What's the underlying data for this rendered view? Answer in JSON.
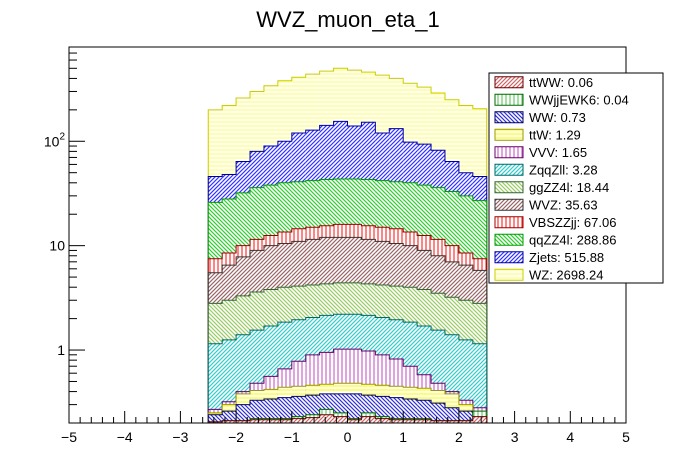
{
  "chart_data": {
    "type": "bar",
    "stacked": true,
    "title": "WVZ_muon_eta_1",
    "xlabel": "",
    "ylabel": "",
    "xlim": [
      -5,
      5
    ],
    "ylim": [
      0.2,
      800
    ],
    "yscale": "log",
    "x_ticks": [
      "−5",
      "−4",
      "−3",
      "−2",
      "−1",
      "0",
      "1",
      "2",
      "3",
      "4",
      "5"
    ],
    "y_ticks": [
      {
        "value": 1,
        "label": "1",
        "exp": ""
      },
      {
        "value": 10,
        "label": "10",
        "exp": ""
      },
      {
        "value": 100,
        "label": "10",
        "exp": "2"
      }
    ],
    "bin_edges": [
      -2.5,
      -2.25,
      -2.0,
      -1.75,
      -1.5,
      -1.25,
      -1.0,
      -0.75,
      -0.5,
      -0.25,
      0.0,
      0.25,
      0.5,
      0.75,
      1.0,
      1.25,
      1.5,
      1.75,
      2.0,
      2.25,
      2.5
    ],
    "legend_position": "top-right",
    "series": [
      {
        "name": "WZ",
        "legend": "WZ: 2698.24",
        "color": "#ffff66",
        "stroke": "#cccc00",
        "cumulative": [
          200,
          220,
          260,
          300,
          340,
          380,
          410,
          440,
          470,
          500,
          480,
          460,
          430,
          400,
          360,
          330,
          290,
          250,
          220,
          205
        ]
      },
      {
        "name": "Zjets",
        "legend": "Zjets: 515.88",
        "color": "#3333ff",
        "stroke": "#000099",
        "cumulative": [
          46,
          48,
          64,
          80,
          90,
          100,
          120,
          128,
          142,
          155,
          140,
          152,
          120,
          132,
          98,
          94,
          82,
          64,
          50,
          46
        ]
      },
      {
        "name": "qqZZ4l",
        "legend": "qqZZ4l: 288.86",
        "color": "#33cc33",
        "stroke": "#009900",
        "cumulative": [
          26,
          28,
          32,
          36,
          38,
          40,
          41,
          42,
          43,
          43.5,
          43.5,
          43,
          42,
          41,
          40,
          38,
          36,
          33,
          30,
          27
        ]
      },
      {
        "name": "VBSZZjj",
        "legend": "VBSZZjj: 67.06",
        "color": "#ff3333",
        "stroke": "#990000",
        "cumulative": [
          7.5,
          8.5,
          10,
          11.5,
          12.5,
          13.5,
          14.5,
          15,
          15.5,
          16,
          16,
          15.5,
          15,
          14.5,
          13.5,
          12.5,
          11.5,
          10,
          8.5,
          7.5
        ]
      },
      {
        "name": "WVZ",
        "legend": "WVZ: 35.63",
        "color": "#996666",
        "stroke": "#333333",
        "cumulative": [
          5.5,
          6.5,
          7.8,
          9.0,
          10.0,
          10.5,
          11.0,
          11.5,
          12.0,
          12.0,
          12.0,
          11.5,
          11.0,
          10.5,
          10.0,
          9.0,
          8.0,
          7.0,
          6.5,
          5.8
        ]
      },
      {
        "name": "ggZZ4l",
        "legend": "ggZZ4l: 18.44",
        "color": "#99cc66",
        "stroke": "#336633",
        "cumulative": [
          2.8,
          3.0,
          3.3,
          3.6,
          3.8,
          4.0,
          4.1,
          4.2,
          4.3,
          4.4,
          4.4,
          4.3,
          4.2,
          4.1,
          4.0,
          3.8,
          3.5,
          3.2,
          3.0,
          2.8
        ]
      },
      {
        "name": "ZqqZll",
        "legend": "ZqqZll: 3.28",
        "color": "#33cccc",
        "stroke": "#006666",
        "cumulative": [
          1.15,
          1.25,
          1.4,
          1.55,
          1.7,
          1.85,
          1.95,
          2.05,
          2.15,
          2.2,
          2.2,
          2.15,
          2.05,
          1.95,
          1.85,
          1.7,
          1.55,
          1.4,
          1.25,
          1.15
        ]
      },
      {
        "name": "VVV",
        "legend": "VVV: 1.65",
        "color": "#cc66cc",
        "stroke": "#660066",
        "cumulative": [
          0.27,
          0.32,
          0.4,
          0.48,
          0.56,
          0.66,
          0.78,
          0.9,
          0.95,
          1.02,
          1.02,
          0.98,
          0.9,
          0.82,
          0.7,
          0.58,
          0.48,
          0.4,
          0.33,
          0.28
        ]
      },
      {
        "name": "ttW",
        "legend": "ttW: 1.29",
        "color": "#ffff00",
        "stroke": "#999900",
        "cumulative": [
          0.25,
          0.3,
          0.38,
          0.41,
          0.42,
          0.44,
          0.45,
          0.46,
          0.47,
          0.48,
          0.48,
          0.47,
          0.46,
          0.45,
          0.44,
          0.43,
          0.41,
          0.38,
          0.3,
          0.25
        ]
      },
      {
        "name": "WW",
        "legend": "WW: 0.73",
        "color": "#3333cc",
        "stroke": "#000066",
        "cumulative": [
          0.24,
          0.26,
          0.3,
          0.33,
          0.34,
          0.35,
          0.36,
          0.37,
          0.38,
          0.38,
          0.38,
          0.37,
          0.36,
          0.35,
          0.34,
          0.33,
          0.31,
          0.28,
          0.26,
          0.24
        ]
      },
      {
        "name": "WWjjEWK6",
        "legend": "WWjjEWK6: 0.04",
        "color": "#66cc66",
        "stroke": "#006600",
        "cumulative": [
          0.205,
          0.21,
          0.21,
          0.22,
          0.22,
          0.22,
          0.23,
          0.24,
          0.27,
          0.25,
          0.22,
          0.25,
          0.23,
          0.22,
          0.22,
          0.22,
          0.21,
          0.21,
          0.21,
          0.26
        ]
      },
      {
        "name": "ttWW",
        "legend": "ttWW: 0.06",
        "color": "#cc6666",
        "stroke": "#660000",
        "cumulative": [
          0.205,
          0.21,
          0.21,
          0.215,
          0.215,
          0.215,
          0.22,
          0.225,
          0.24,
          0.23,
          0.215,
          0.23,
          0.22,
          0.215,
          0.215,
          0.215,
          0.21,
          0.21,
          0.21,
          0.23
        ]
      }
    ]
  }
}
